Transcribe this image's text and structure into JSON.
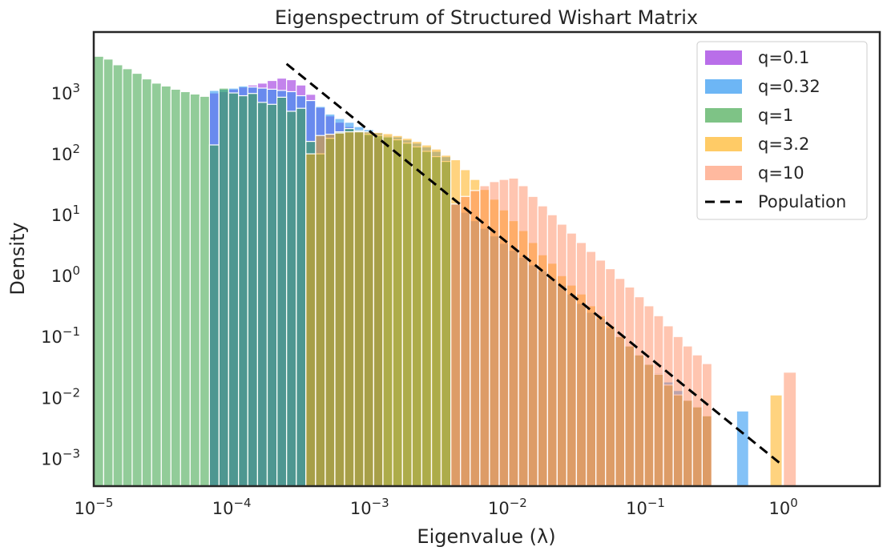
{
  "chart_data": {
    "type": "histogram",
    "title": "Eigenspectrum of Structured Wishart Matrix",
    "xlabel": "Eigenvalue (λ)",
    "ylabel": "Density",
    "xscale": "log",
    "yscale": "log",
    "xlim": [
      1e-05,
      5
    ],
    "ylim": [
      0.00035,
      10000
    ],
    "grid": false,
    "legend_position": "top-right",
    "x_ticks": [
      {
        "base": "10",
        "exp": "−5",
        "value": 1e-05
      },
      {
        "base": "10",
        "exp": "−4",
        "value": 0.0001
      },
      {
        "base": "10",
        "exp": "−3",
        "value": 0.001
      },
      {
        "base": "10",
        "exp": "−2",
        "value": 0.01
      },
      {
        "base": "10",
        "exp": "−1",
        "value": 0.1
      },
      {
        "base": "10",
        "exp": "0",
        "value": 1
      }
    ],
    "y_ticks": [
      {
        "base": "10",
        "exp": "−3",
        "value": 0.001
      },
      {
        "base": "10",
        "exp": "−2",
        "value": 0.01
      },
      {
        "base": "10",
        "exp": "−1",
        "value": 0.1
      },
      {
        "base": "10",
        "exp": "0",
        "value": 1
      },
      {
        "base": "10",
        "exp": "1",
        "value": 10
      },
      {
        "base": "10",
        "exp": "2",
        "value": 100
      },
      {
        "base": "10",
        "exp": "3",
        "value": 1000
      }
    ],
    "series": [
      {
        "name": "q=0.1",
        "color": "#9b30e0",
        "opacity": 0.6,
        "bins": [
          [
            6.9e-05,
            8.1e-05,
            1000
          ],
          [
            8.1e-05,
            9.5e-05,
            1050
          ],
          [
            9.5e-05,
            0.000112,
            1150
          ],
          [
            0.000112,
            0.000131,
            1250
          ],
          [
            0.000131,
            0.000154,
            1350
          ],
          [
            0.000154,
            0.000181,
            1450
          ],
          [
            0.000181,
            0.000213,
            1600
          ],
          [
            0.000213,
            0.00025,
            1750
          ],
          [
            0.00025,
            0.000294,
            1650
          ],
          [
            0.000294,
            0.000345,
            1350
          ],
          [
            0.000345,
            0.000406,
            950
          ],
          [
            0.000406,
            0.000477,
            580
          ],
          [
            0.000477,
            0.00056,
            420
          ],
          [
            0.00056,
            0.000658,
            330
          ],
          [
            0.000658,
            0.000773,
            280
          ],
          [
            0.000773,
            0.000908,
            240
          ],
          [
            0.000908,
            0.00107,
            200
          ],
          [
            0.00107,
            0.00125,
            180
          ]
        ]
      },
      {
        "name": "q=0.32",
        "color": "#1f8ff0",
        "opacity": 0.55,
        "bins": [
          [
            6.9e-05,
            8.1e-05,
            1100
          ],
          [
            8.1e-05,
            9.5e-05,
            1150
          ],
          [
            9.5e-05,
            0.000112,
            1200
          ],
          [
            0.000112,
            0.000131,
            1300
          ],
          [
            0.000131,
            0.000154,
            1250
          ],
          [
            0.000154,
            0.000181,
            1200
          ],
          [
            0.000181,
            0.000213,
            1150
          ],
          [
            0.000213,
            0.00025,
            1100
          ],
          [
            0.00025,
            0.000294,
            1050
          ],
          [
            0.000294,
            0.000345,
            900
          ],
          [
            0.000345,
            0.000406,
            750
          ],
          [
            0.000406,
            0.000477,
            600
          ],
          [
            0.000477,
            0.00056,
            450
          ],
          [
            0.00056,
            0.000658,
            380
          ],
          [
            0.000658,
            0.000773,
            330
          ],
          [
            0.000773,
            0.000908,
            280
          ],
          [
            0.000908,
            0.00107,
            250
          ],
          [
            0.00107,
            0.00125,
            220
          ],
          [
            0.00125,
            0.00147,
            200
          ],
          [
            0.00147,
            0.00173,
            190
          ],
          [
            0.00173,
            0.00203,
            170
          ],
          [
            0.00203,
            0.00239,
            150
          ],
          [
            0.00239,
            0.00281,
            130
          ],
          [
            0.00281,
            0.0033,
            110
          ],
          [
            0.0033,
            0.00388,
            90
          ],
          [
            0.00388,
            0.00456,
            15
          ],
          [
            0.00456,
            0.00536,
            11
          ],
          [
            0.00536,
            0.0063,
            8
          ],
          [
            0.0063,
            0.0074,
            6
          ],
          [
            0.0074,
            0.0087,
            4.5
          ],
          [
            0.0087,
            0.0102,
            3.4
          ],
          [
            0.0102,
            0.012,
            2.6
          ],
          [
            0.012,
            0.0141,
            2.0
          ],
          [
            0.0141,
            0.0166,
            1.5
          ],
          [
            0.0166,
            0.0195,
            1.2
          ],
          [
            0.0195,
            0.0229,
            0.9
          ],
          [
            0.0229,
            0.0269,
            0.7
          ],
          [
            0.0269,
            0.0316,
            0.5
          ],
          [
            0.0316,
            0.0372,
            0.35
          ],
          [
            0.0372,
            0.0437,
            0.25
          ],
          [
            0.0437,
            0.0513,
            0.2
          ],
          [
            0.0513,
            0.0603,
            0.14
          ],
          [
            0.0603,
            0.0709,
            0.1
          ],
          [
            0.0709,
            0.0833,
            0.07
          ],
          [
            0.0833,
            0.0979,
            0.05
          ],
          [
            0.0979,
            0.115,
            0.036
          ],
          [
            0.115,
            0.135,
            0.025
          ],
          [
            0.135,
            0.159,
            0.018
          ],
          [
            0.159,
            0.187,
            0.013
          ],
          [
            0.187,
            0.219,
            0.009
          ],
          [
            0.219,
            0.258,
            0.007
          ],
          [
            0.258,
            0.303,
            0.005
          ],
          [
            0.458,
            0.56,
            0.006
          ]
        ]
      },
      {
        "name": "q=1",
        "color": "#39a345",
        "opacity": 0.55,
        "bins": [
          [
            1e-05,
            1.18e-05,
            4000
          ],
          [
            1.18e-05,
            1.38e-05,
            3600
          ],
          [
            1.38e-05,
            1.62e-05,
            2900
          ],
          [
            1.62e-05,
            1.9e-05,
            2500
          ],
          [
            1.9e-05,
            2.24e-05,
            2100
          ],
          [
            2.24e-05,
            2.63e-05,
            1700
          ],
          [
            2.63e-05,
            3.09e-05,
            1450
          ],
          [
            3.09e-05,
            3.63e-05,
            1300
          ],
          [
            3.63e-05,
            4.26e-05,
            1150
          ],
          [
            4.26e-05,
            5e-05,
            1050
          ],
          [
            5e-05,
            5.88e-05,
            960
          ],
          [
            5.88e-05,
            6.9e-05,
            880
          ],
          [
            6.9e-05,
            8.1e-05,
            140
          ],
          [
            8.1e-05,
            9.5e-05,
            1200
          ],
          [
            9.5e-05,
            0.000112,
            1000
          ],
          [
            0.000112,
            0.000131,
            900
          ],
          [
            0.000131,
            0.000154,
            980
          ],
          [
            0.000154,
            0.000181,
            700
          ],
          [
            0.000181,
            0.000213,
            650
          ],
          [
            0.000213,
            0.00025,
            850
          ],
          [
            0.00025,
            0.000294,
            500
          ],
          [
            0.000294,
            0.000345,
            560
          ],
          [
            0.000345,
            0.000406,
            160
          ],
          [
            0.000406,
            0.000477,
            100
          ],
          [
            0.000477,
            0.00056,
            180
          ],
          [
            0.00056,
            0.000658,
            230
          ],
          [
            0.000658,
            0.000773,
            260
          ],
          [
            0.000773,
            0.000908,
            240
          ],
          [
            0.000908,
            0.00107,
            210
          ],
          [
            0.00107,
            0.00125,
            200
          ],
          [
            0.00125,
            0.00147,
            190
          ],
          [
            0.00147,
            0.00173,
            170
          ],
          [
            0.00173,
            0.00203,
            150
          ],
          [
            0.00203,
            0.00239,
            130
          ],
          [
            0.00239,
            0.00281,
            110
          ],
          [
            0.00281,
            0.0033,
            90
          ],
          [
            0.0033,
            0.00388,
            75
          ]
        ]
      },
      {
        "name": "q=3.2",
        "color": "#ffa800",
        "opacity": 0.5,
        "bins": [
          [
            0.000345,
            0.000406,
            100
          ],
          [
            0.000406,
            0.000477,
            200
          ],
          [
            0.000477,
            0.00056,
            210
          ],
          [
            0.00056,
            0.000658,
            220
          ],
          [
            0.000658,
            0.000773,
            230
          ],
          [
            0.000773,
            0.000908,
            230
          ],
          [
            0.000908,
            0.00107,
            230
          ],
          [
            0.00107,
            0.00125,
            225
          ],
          [
            0.00125,
            0.00147,
            215
          ],
          [
            0.00147,
            0.00173,
            200
          ],
          [
            0.00173,
            0.00203,
            180
          ],
          [
            0.00203,
            0.00239,
            160
          ],
          [
            0.00239,
            0.00281,
            140
          ],
          [
            0.00281,
            0.0033,
            120
          ],
          [
            0.0033,
            0.00388,
            95
          ],
          [
            0.00388,
            0.00456,
            80
          ],
          [
            0.00456,
            0.00536,
            55
          ],
          [
            0.00536,
            0.0063,
            38
          ],
          [
            0.0063,
            0.0074,
            26
          ],
          [
            0.0074,
            0.0087,
            18
          ],
          [
            0.0087,
            0.0102,
            12
          ],
          [
            0.0102,
            0.012,
            8
          ],
          [
            0.012,
            0.0141,
            5.5
          ],
          [
            0.0141,
            0.0166,
            3.5
          ],
          [
            0.0166,
            0.0195,
            2.2
          ],
          [
            0.0195,
            0.0229,
            1.6
          ],
          [
            0.0229,
            0.0269,
            1.0
          ],
          [
            0.0269,
            0.0316,
            0.7
          ],
          [
            0.0316,
            0.0372,
            0.5
          ],
          [
            0.0372,
            0.0437,
            0.32
          ],
          [
            0.0437,
            0.0513,
            0.22
          ],
          [
            0.0513,
            0.0603,
            0.15
          ],
          [
            0.0603,
            0.0709,
            0.1
          ],
          [
            0.0709,
            0.0833,
            0.07
          ],
          [
            0.0833,
            0.0979,
            0.05
          ],
          [
            0.0979,
            0.115,
            0.035
          ],
          [
            0.115,
            0.135,
            0.024
          ],
          [
            0.135,
            0.159,
            0.016
          ],
          [
            0.159,
            0.187,
            0.011
          ],
          [
            0.187,
            0.219,
            0.009
          ],
          [
            0.219,
            0.258,
            0.007
          ],
          [
            0.258,
            0.303,
            0.005
          ],
          [
            0.8,
            0.98,
            0.011
          ]
        ]
      },
      {
        "name": "q=10",
        "color": "#ff7f50",
        "opacity": 0.45,
        "bins": [
          [
            0.00388,
            0.00456,
            15
          ],
          [
            0.00456,
            0.00536,
            20
          ],
          [
            0.00536,
            0.0063,
            25
          ],
          [
            0.0063,
            0.0074,
            30
          ],
          [
            0.0074,
            0.0087,
            35
          ],
          [
            0.0087,
            0.0102,
            38
          ],
          [
            0.0102,
            0.012,
            40
          ],
          [
            0.012,
            0.0141,
            30
          ],
          [
            0.0141,
            0.0166,
            20
          ],
          [
            0.0166,
            0.0195,
            14
          ],
          [
            0.0195,
            0.0229,
            10
          ],
          [
            0.0229,
            0.0269,
            7
          ],
          [
            0.0269,
            0.0316,
            5
          ],
          [
            0.0316,
            0.0372,
            3.5
          ],
          [
            0.0372,
            0.0437,
            2.5
          ],
          [
            0.0437,
            0.0513,
            1.8
          ],
          [
            0.0513,
            0.0603,
            1.3
          ],
          [
            0.0603,
            0.0709,
            0.9
          ],
          [
            0.0709,
            0.0833,
            0.65
          ],
          [
            0.0833,
            0.0979,
            0.45
          ],
          [
            0.0979,
            0.115,
            0.32
          ],
          [
            0.115,
            0.135,
            0.22
          ],
          [
            0.135,
            0.159,
            0.15
          ],
          [
            0.159,
            0.187,
            0.1
          ],
          [
            0.187,
            0.219,
            0.07
          ],
          [
            0.219,
            0.258,
            0.05
          ],
          [
            0.258,
            0.303,
            0.036
          ],
          [
            1.0,
            1.24,
            0.026
          ]
        ]
      }
    ],
    "population_line": {
      "name": "Population",
      "color": "#000000",
      "dash": "dashed",
      "points": [
        [
          0.00025,
          3000
        ],
        [
          1.0,
          0.00075
        ]
      ]
    }
  }
}
